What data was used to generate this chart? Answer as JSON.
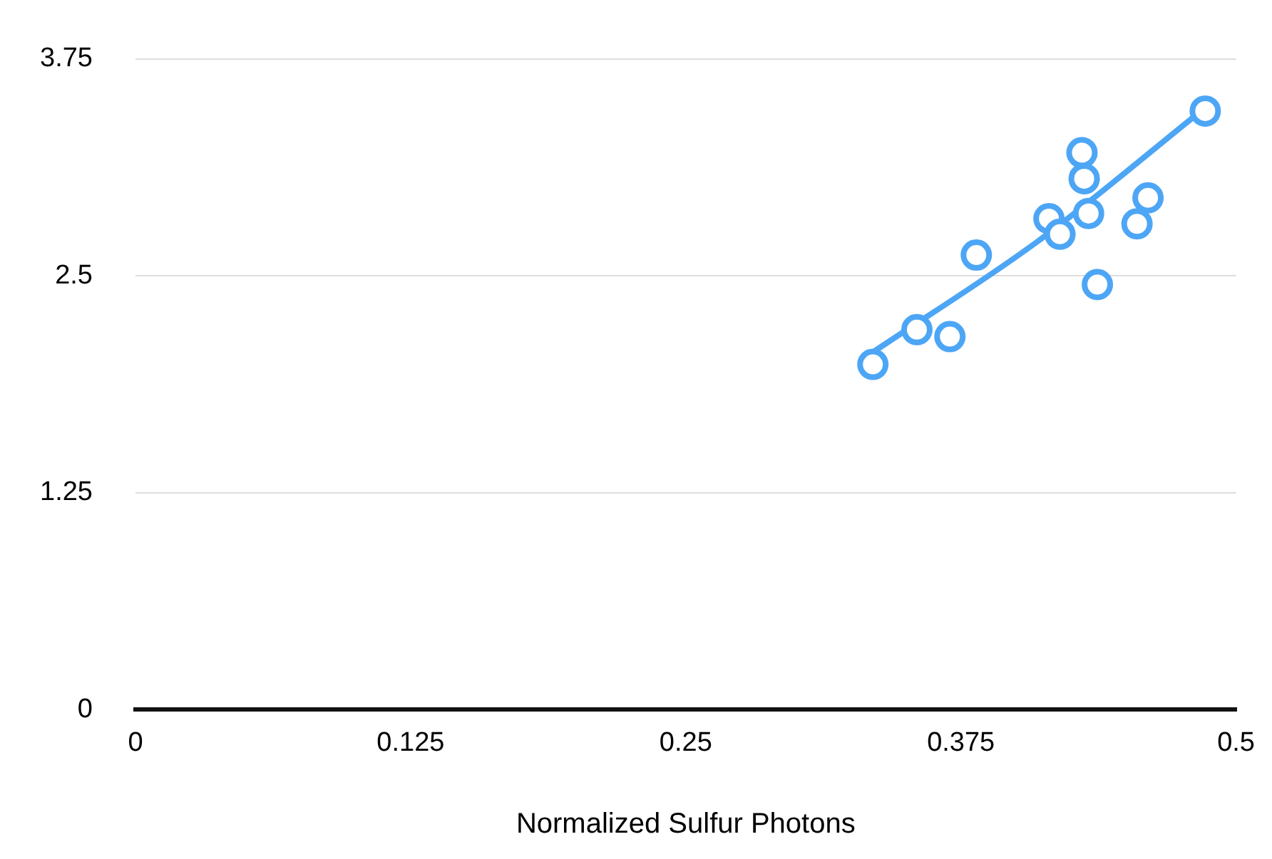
{
  "chart_data": {
    "type": "scatter",
    "xlabel": "Normalized Sulfur Photons",
    "xlim": [
      0,
      0.5
    ],
    "xticks": [
      0,
      0.125,
      0.25,
      0.375,
      0.5
    ],
    "ylim": [
      0,
      3.75
    ],
    "yticks": [
      0,
      1.25,
      2.5,
      3.75
    ],
    "grid": "y",
    "legend": false,
    "marker": "circle",
    "series": [
      {
        "color": "#4da6f5",
        "x": [
          0.335,
          0.355,
          0.37,
          0.382,
          0.415,
          0.42,
          0.43,
          0.431,
          0.433,
          0.437,
          0.455,
          0.46,
          0.486
        ],
        "values": [
          1.99,
          2.19,
          2.15,
          2.62,
          2.83,
          2.74,
          3.21,
          3.06,
          2.86,
          2.45,
          2.8,
          2.95,
          3.45
        ]
      },
      {
        "type": "line",
        "color": "#4da6f5",
        "marker": "none",
        "line_style": "solid",
        "x": [
          0.335,
          0.41,
          0.486
        ],
        "values": [
          2.06,
          2.7,
          3.47
        ]
      }
    ]
  }
}
